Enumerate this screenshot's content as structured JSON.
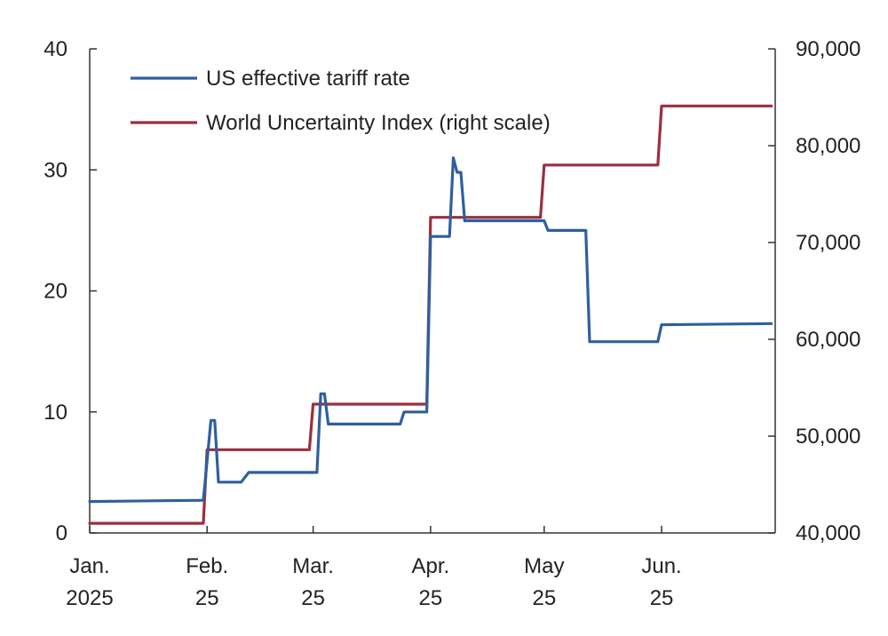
{
  "chart_data": {
    "type": "line",
    "x_type": "date",
    "x_range": [
      "2025-01-01",
      "2025-07-01"
    ],
    "x_ticks": [
      {
        "date": "2025-01-01",
        "line1": "Jan.",
        "line2": "2025"
      },
      {
        "date": "2025-02-01",
        "line1": "Feb.",
        "line2": "25"
      },
      {
        "date": "2025-03-01",
        "line1": "Mar.",
        "line2": "25"
      },
      {
        "date": "2025-04-01",
        "line1": "Apr.",
        "line2": "25"
      },
      {
        "date": "2025-05-01",
        "line1": "May",
        "line2": "25"
      },
      {
        "date": "2025-06-01",
        "line1": "Jun.",
        "line2": "25"
      }
    ],
    "y_left": {
      "ylim": [
        0,
        40
      ],
      "ticks": [
        0,
        10,
        20,
        30,
        40
      ],
      "tick_labels": [
        "0",
        "10",
        "20",
        "30",
        "40"
      ]
    },
    "y_right": {
      "ylim": [
        40000,
        90000
      ],
      "ticks": [
        40000,
        50000,
        60000,
        70000,
        80000,
        90000
      ],
      "tick_labels": [
        "40,000",
        "50,000",
        "60,000",
        "70,000",
        "80,000",
        "90,000"
      ]
    },
    "grid": false,
    "legend_position": "top-left",
    "series": [
      {
        "name": "US effective tariff rate",
        "axis": "left",
        "color": "#2f5f9e",
        "points": [
          [
            "2025-01-01",
            2.6
          ],
          [
            "2025-01-31",
            2.7
          ],
          [
            "2025-02-02",
            9.3
          ],
          [
            "2025-02-03",
            9.3
          ],
          [
            "2025-02-04",
            4.2
          ],
          [
            "2025-02-10",
            4.2
          ],
          [
            "2025-02-12",
            5.0
          ],
          [
            "2025-03-02",
            5.0
          ],
          [
            "2025-03-03",
            11.5
          ],
          [
            "2025-03-04",
            11.5
          ],
          [
            "2025-03-05",
            9.0
          ],
          [
            "2025-03-24",
            9.0
          ],
          [
            "2025-03-25",
            10.0
          ],
          [
            "2025-03-31",
            10.0
          ],
          [
            "2025-04-01",
            24.5
          ],
          [
            "2025-04-06",
            24.5
          ],
          [
            "2025-04-07",
            31.0
          ],
          [
            "2025-04-08",
            29.8
          ],
          [
            "2025-04-09",
            29.8
          ],
          [
            "2025-04-10",
            25.8
          ],
          [
            "2025-05-01",
            25.8
          ],
          [
            "2025-05-02",
            25.0
          ],
          [
            "2025-05-12",
            25.0
          ],
          [
            "2025-05-13",
            15.8
          ],
          [
            "2025-05-31",
            15.8
          ],
          [
            "2025-06-01",
            17.2
          ],
          [
            "2025-06-30",
            17.3
          ]
        ]
      },
      {
        "name": "World Uncertainty Index (right scale)",
        "axis": "right",
        "color": "#9b2f3e",
        "points": [
          [
            "2025-01-01",
            41000
          ],
          [
            "2025-01-31",
            41000
          ],
          [
            "2025-02-01",
            48600
          ],
          [
            "2025-02-28",
            48600
          ],
          [
            "2025-03-01",
            53300
          ],
          [
            "2025-03-31",
            53300
          ],
          [
            "2025-04-01",
            72600
          ],
          [
            "2025-04-30",
            72600
          ],
          [
            "2025-05-01",
            78000
          ],
          [
            "2025-05-31",
            78000
          ],
          [
            "2025-06-01",
            84100
          ],
          [
            "2025-06-30",
            84100
          ]
        ]
      }
    ]
  }
}
